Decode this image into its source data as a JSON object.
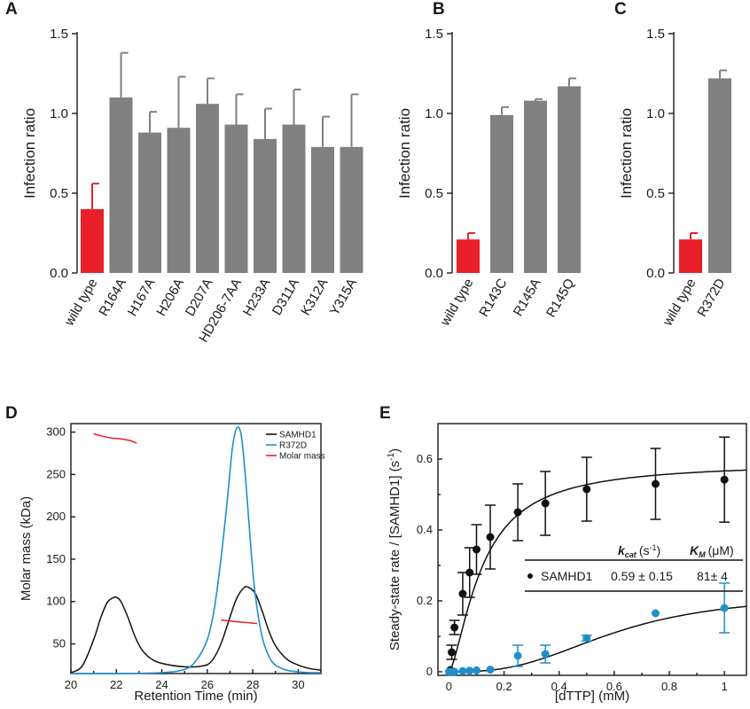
{
  "colors": {
    "wildtype": "#e8202a",
    "mutant": "#808080",
    "samhd1": "#111111",
    "r372d": "#1f8fca",
    "molar": "#e8202a"
  },
  "chart_data": [
    {
      "panel": "A",
      "type": "bar",
      "ylabel": "Infection ratio",
      "ylim": [
        0,
        1.5
      ],
      "yticks": [
        "0.0",
        "0.5",
        "1.0",
        "1.5"
      ],
      "categories": [
        "wild type",
        "R164A",
        "H167A",
        "H206A",
        "D207A",
        "HD206-7AA",
        "H233A",
        "D311A",
        "K312A",
        "Y315A"
      ],
      "values": [
        0.4,
        1.1,
        0.88,
        0.91,
        1.06,
        0.93,
        0.84,
        0.93,
        0.79,
        0.79
      ],
      "errors": [
        0.16,
        0.28,
        0.13,
        0.32,
        0.16,
        0.19,
        0.19,
        0.22,
        0.19,
        0.33
      ]
    },
    {
      "panel": "B",
      "type": "bar",
      "ylabel": "Infection ratio",
      "ylim": [
        0,
        1.5
      ],
      "yticks": [
        "0.0",
        "0.5",
        "1.0",
        "1.5"
      ],
      "categories": [
        "wild type",
        "R143C",
        "R145A",
        "R145Q"
      ],
      "values": [
        0.21,
        0.99,
        1.08,
        1.17
      ],
      "errors": [
        0.04,
        0.05,
        0.01,
        0.05
      ]
    },
    {
      "panel": "C",
      "type": "bar",
      "ylabel": "Infection ratio",
      "ylim": [
        0,
        1.5
      ],
      "yticks": [
        "0.0",
        "0.5",
        "1.0",
        "1.5"
      ],
      "categories": [
        "wild type",
        "R372D"
      ],
      "values": [
        0.21,
        1.22
      ],
      "errors": [
        0.04,
        0.05
      ]
    },
    {
      "panel": "D",
      "type": "line",
      "xlabel": "Retention Time (min)",
      "ylabel": "Molar mass (kDa)",
      "xlim": [
        20,
        31
      ],
      "ylim": [
        15,
        310
      ],
      "xticks": [
        "20",
        "22",
        "24",
        "26",
        "28",
        "30"
      ],
      "yticks": [
        "50",
        "100",
        "150",
        "200",
        "250",
        "300"
      ],
      "legend": [
        "SAMHD1",
        "R372D",
        "Molar mass"
      ],
      "series": [
        {
          "name": "SAMHD1",
          "x": [
            20.0,
            20.5,
            21.0,
            21.3,
            21.6,
            21.9,
            22.0,
            22.2,
            22.5,
            22.8,
            23.1,
            23.5,
            24.0,
            25.0,
            25.8,
            26.2,
            26.6,
            27.0,
            27.3,
            27.6,
            27.8,
            28.1,
            28.4,
            28.7,
            29.0,
            29.5,
            30.0,
            30.5,
            31.0
          ],
          "y": [
            16,
            24,
            55,
            80,
            99,
            105,
            105,
            100,
            82,
            60,
            44,
            33,
            27,
            23,
            24,
            30,
            50,
            82,
            104,
            116,
            117,
            110,
            90,
            66,
            48,
            32,
            25,
            21,
            19
          ]
        },
        {
          "name": "R372D",
          "x": [
            20.0,
            22.0,
            24.0,
            25.0,
            25.5,
            26.0,
            26.3,
            26.6,
            26.9,
            27.1,
            27.3,
            27.5,
            27.7,
            27.9,
            28.1,
            28.4,
            28.7,
            29.0,
            29.5,
            30.0,
            30.5,
            31.0
          ],
          "y": [
            15,
            15,
            16,
            20,
            30,
            55,
            90,
            150,
            225,
            280,
            305,
            295,
            240,
            170,
            110,
            60,
            36,
            25,
            19,
            17,
            16,
            16
          ],
          "color": "#1f8fca"
        },
        {
          "name": "Molar mass",
          "x": [
            21.0,
            21.4,
            21.8,
            22.2,
            22.6,
            22.9
          ],
          "y": [
            298,
            295,
            293,
            292,
            290,
            287
          ]
        },
        {
          "name": "Molar mass",
          "x": [
            26.6,
            27.0,
            27.4,
            27.8,
            28.2
          ],
          "y": [
            78,
            77,
            76,
            75,
            74
          ]
        }
      ]
    },
    {
      "panel": "E",
      "type": "scatter",
      "xlabel": "[dTTP] (mM)",
      "ylabel": "Steady-state rate / [SAMHD1] (s",
      "ylabel_sup": "-1",
      "ylabel_end": ")",
      "xlim": [
        -0.04,
        1.08
      ],
      "ylim": [
        -0.01,
        0.7
      ],
      "xticks": [
        "0",
        "0.2",
        "0.4",
        "0.6",
        "0.8",
        "1"
      ],
      "yticks": [
        "0",
        "0.2",
        "0.4",
        "0.6"
      ],
      "series": [
        {
          "name": "SAMHD1",
          "x": [
            0.005,
            0.01,
            0.02,
            0.05,
            0.075,
            0.1,
            0.15,
            0.25,
            0.35,
            0.5,
            0.75,
            1.0
          ],
          "y": [
            0.005,
            0.055,
            0.125,
            0.22,
            0.28,
            0.345,
            0.38,
            0.45,
            0.475,
            0.515,
            0.53,
            0.542
          ],
          "err": [
            0.005,
            0.02,
            0.02,
            0.06,
            0.07,
            0.07,
            0.09,
            0.08,
            0.09,
            0.09,
            0.1,
            0.12
          ]
        },
        {
          "name": "R372D",
          "x": [
            0.0,
            0.01,
            0.02,
            0.05,
            0.075,
            0.1,
            0.15,
            0.25,
            0.35,
            0.5,
            0.75,
            1.0
          ],
          "y": [
            0.0,
            0.0,
            0.0,
            0.002,
            0.003,
            0.004,
            0.006,
            0.045,
            0.05,
            0.095,
            0.165,
            0.18
          ],
          "err": [
            0.0,
            0.0,
            0.0,
            0.0,
            0.0,
            0.0,
            0.0,
            0.03,
            0.025,
            0.008,
            0.005,
            0.07
          ]
        }
      ],
      "table": {
        "col_kcat": "k",
        "col_kcat_sub": "cat",
        "col_kcat_unit": "(s",
        "col_kcat_sup": "-1",
        "col_kcat_close": ")",
        "col_km": "K",
        "col_km_sub": "M",
        "col_km_unit": "(μM)",
        "row_name": "SAMHD1",
        "row_kcat": "0.59 ± 0.15",
        "row_km": "81± 4"
      }
    }
  ]
}
